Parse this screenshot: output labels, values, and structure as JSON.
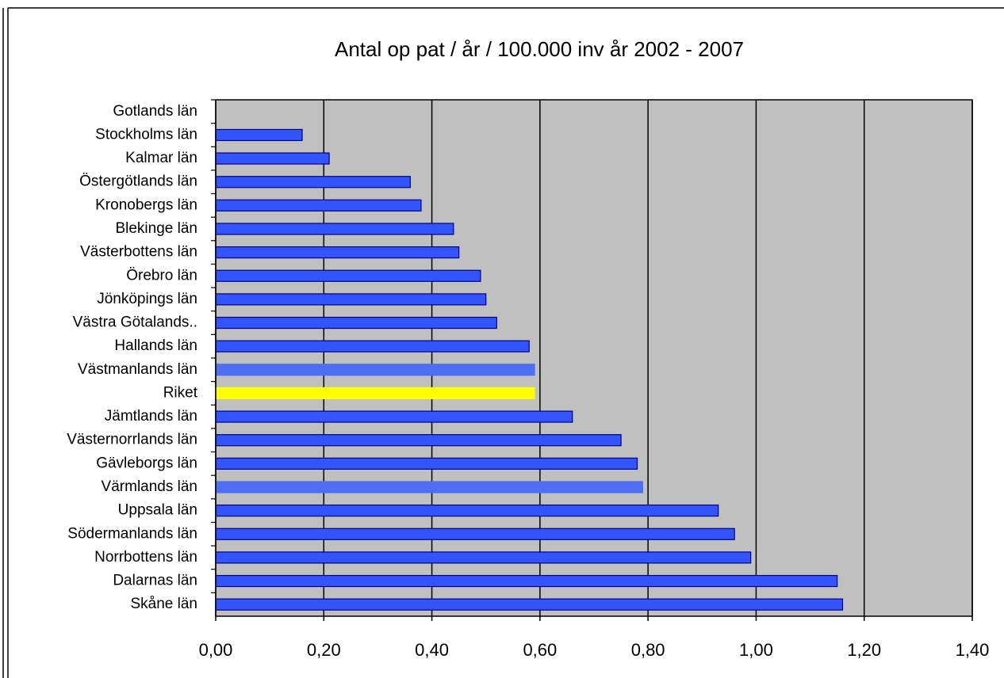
{
  "chart_data": {
    "type": "bar",
    "orientation": "horizontal",
    "title": "Antal op pat / år / 100.000 inv år 2002 - 2007",
    "categories": [
      "Gotlands län",
      "Stockholms län",
      "Kalmar län",
      "Östergötlands län",
      "Kronobergs län",
      "Blekinge län",
      "Västerbottens län",
      "Örebro län",
      "Jönköpings län",
      "Västra Götalands..",
      "Hallands län",
      "Västmanlands län",
      "Riket",
      "Jämtlands län",
      "Västernorrlands län",
      "Gävleborgs län",
      "Värmlands län",
      "Uppsala län",
      "Södermanlands län",
      "Norrbottens län",
      "Dalarnas län",
      "Skåne län"
    ],
    "values": [
      0,
      0.16,
      0.21,
      0.36,
      0.38,
      0.44,
      0.45,
      0.49,
      0.5,
      0.52,
      0.58,
      0.59,
      0.59,
      0.66,
      0.75,
      0.78,
      0.79,
      0.93,
      0.96,
      0.99,
      1.15,
      1.16
    ],
    "colors": [
      "#3355ff",
      "#3355ff",
      "#3355ff",
      "#3355ff",
      "#3355ff",
      "#3355ff",
      "#3355ff",
      "#3355ff",
      "#3355ff",
      "#3355ff",
      "#3355ff",
      "#4d6ef5",
      "#ffff00",
      "#3355ff",
      "#3355ff",
      "#3355ff",
      "#4d6ef5",
      "#3355ff",
      "#3355ff",
      "#3355ff",
      "#3355ff",
      "#3355ff"
    ],
    "xlim": [
      0,
      1.4
    ],
    "xticks": [
      {
        "value": 0,
        "label": "0,00"
      },
      {
        "value": 0.2,
        "label": "0,20"
      },
      {
        "value": 0.4,
        "label": "0,40"
      },
      {
        "value": 0.6,
        "label": "0,60"
      },
      {
        "value": 0.8,
        "label": "0,80"
      },
      {
        "value": 1.0,
        "label": "1,00"
      },
      {
        "value": 1.2,
        "label": "1,20"
      },
      {
        "value": 1.4,
        "label": "1,40"
      }
    ],
    "grid": true
  }
}
